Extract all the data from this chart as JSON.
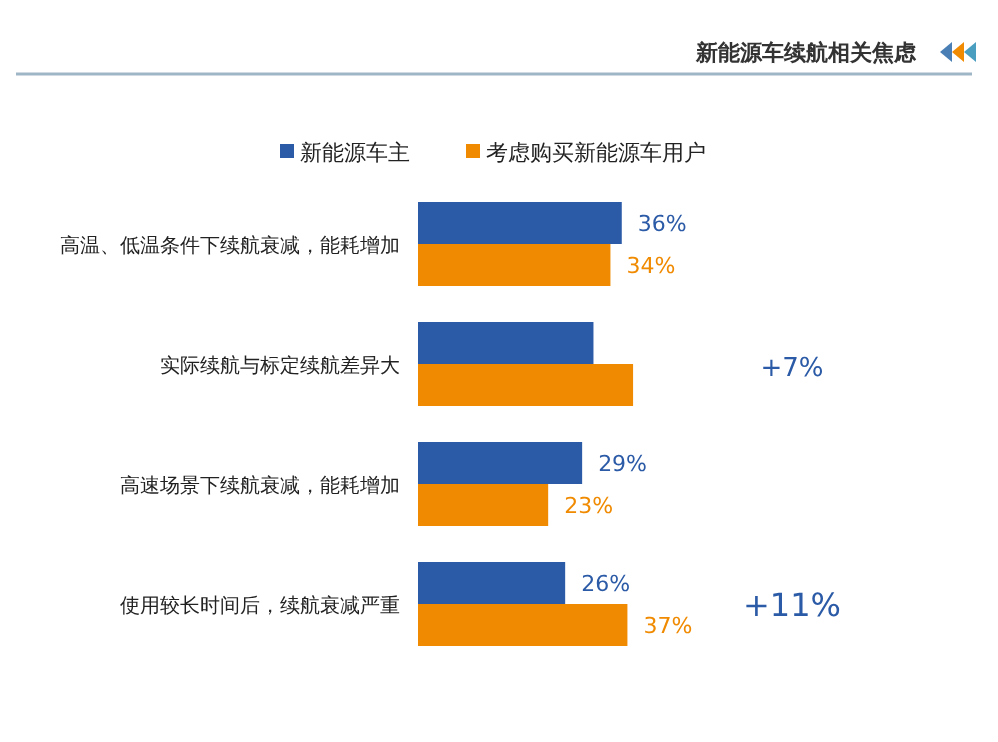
{
  "chart_data": {
    "type": "bar",
    "orientation": "horizontal",
    "title": "新能源车续航相关焦虑",
    "categories": [
      "高温、低温条件下续航衰减，能耗增加",
      "实际续航与标定续航差异大",
      "高速场景下续航衰减，能耗增加",
      "使用较长时间后，续航衰减严重"
    ],
    "series": [
      {
        "name": "新能源车主",
        "color": "#2b5aa6",
        "values": [
          36,
          31,
          29,
          26
        ],
        "value_labels": [
          "36%",
          null,
          "29%",
          "26%"
        ]
      },
      {
        "name": "考虑购买新能源车用户",
        "color": "#f08a00",
        "values": [
          34,
          38,
          23,
          37
        ],
        "value_labels": [
          "34%",
          null,
          "23%",
          "37%"
        ]
      }
    ],
    "annotations": [
      "+7%",
      "+11%"
    ],
    "legend": "top"
  }
}
